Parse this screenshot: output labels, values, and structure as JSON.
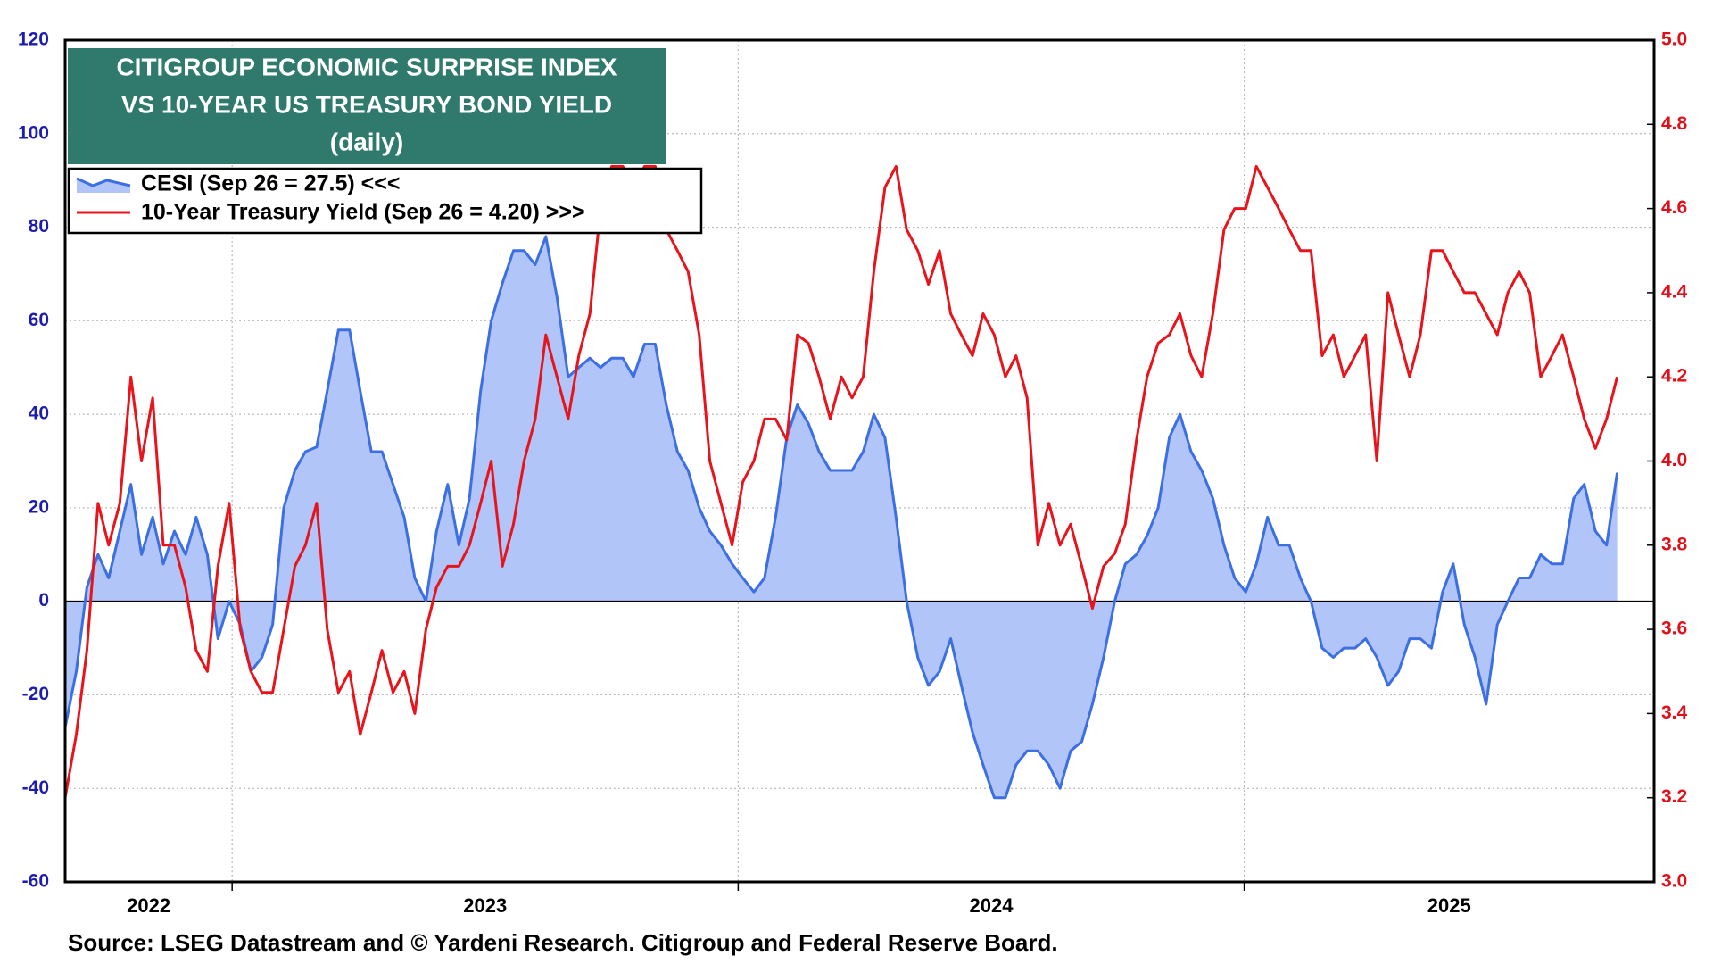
{
  "chart_data": {
    "type": "line",
    "title": [
      "CITIGROUP ECONOMIC SURPRISE INDEX",
      "VS 10-YEAR US TREASURY BOND YIELD"
    ],
    "subtitle": "(daily)",
    "source": "Source: LSEG Datastream and © Yardeni Research. Citigroup and Federal Reserve Board.",
    "x": [
      2022.67,
      2022.692,
      2022.713,
      2022.735,
      2022.756,
      2022.778,
      2022.8,
      2022.821,
      2022.843,
      2022.864,
      2022.886,
      2022.908,
      2022.929,
      2022.951,
      2022.972,
      2022.994,
      2023.016,
      2023.037,
      2023.059,
      2023.08,
      2023.102,
      2023.124,
      2023.145,
      2023.167,
      2023.188,
      2023.21,
      2023.232,
      2023.253,
      2023.275,
      2023.296,
      2023.318,
      2023.34,
      2023.361,
      2023.383,
      2023.404,
      2023.426,
      2023.448,
      2023.469,
      2023.491,
      2023.512,
      2023.534,
      2023.556,
      2023.577,
      2023.599,
      2023.62,
      2023.642,
      2023.664,
      2023.685,
      2023.707,
      2023.728,
      2023.75,
      2023.772,
      2023.793,
      2023.815,
      2023.836,
      2023.858,
      2023.88,
      2023.901,
      2023.923,
      2023.944,
      2023.966,
      2023.988,
      2024.009,
      2024.031,
      2024.052,
      2024.074,
      2024.096,
      2024.117,
      2024.139,
      2024.16,
      2024.182,
      2024.204,
      2024.225,
      2024.247,
      2024.268,
      2024.29,
      2024.312,
      2024.333,
      2024.355,
      2024.376,
      2024.398,
      2024.42,
      2024.441,
      2024.463,
      2024.484,
      2024.506,
      2024.528,
      2024.549,
      2024.571,
      2024.592,
      2024.614,
      2024.636,
      2024.657,
      2024.679,
      2024.7,
      2024.722,
      2024.744,
      2024.765,
      2024.787,
      2024.808,
      2024.83,
      2024.852,
      2024.873,
      2024.895,
      2024.916,
      2024.938,
      2024.96,
      2024.981,
      2025.003,
      2025.024,
      2025.046,
      2025.068,
      2025.089,
      2025.111,
      2025.132,
      2025.154,
      2025.176,
      2025.197,
      2025.219,
      2025.24,
      2025.262,
      2025.284,
      2025.305,
      2025.327,
      2025.348,
      2025.37,
      2025.392,
      2025.413,
      2025.435,
      2025.456,
      2025.478,
      2025.5,
      2025.521,
      2025.543,
      2025.564,
      2025.586,
      2025.608,
      2025.629,
      2025.651,
      2025.672,
      2025.694,
      2025.716,
      2025.737
    ],
    "series": [
      {
        "name": "CESI (Sep 26 = 27.5) <<<",
        "color": "#3c6fe2",
        "fill": "#b2c5f8",
        "axis": "y",
        "values": [
          -27,
          -15,
          3,
          10,
          5,
          15,
          25,
          10,
          18,
          8,
          15,
          10,
          18,
          10,
          -8,
          0,
          -5,
          -15,
          -12,
          -5,
          20,
          28,
          32,
          33,
          45,
          58,
          58,
          45,
          32,
          32,
          25,
          18,
          5,
          0,
          15,
          25,
          12,
          22,
          45,
          60,
          68,
          75,
          75,
          72,
          78,
          65,
          48,
          50,
          52,
          50,
          52,
          52,
          48,
          55,
          55,
          42,
          32,
          28,
          20,
          15,
          12,
          8,
          5,
          2,
          5,
          18,
          35,
          42,
          38,
          32,
          28,
          28,
          28,
          32,
          40,
          35,
          18,
          0,
          -12,
          -18,
          -15,
          -8,
          -18,
          -28,
          -35,
          -42,
          -42,
          -35,
          -32,
          -32,
          -35,
          -40,
          -32,
          -30,
          -22,
          -12,
          0,
          8,
          10,
          14,
          20,
          35,
          40,
          32,
          28,
          22,
          12,
          5,
          2,
          8,
          18,
          12,
          12,
          5,
          0,
          -10,
          -12,
          -10,
          -10,
          -8,
          -12,
          -18,
          -15,
          -8,
          -8,
          -10,
          2,
          8,
          -5,
          -12,
          -22,
          -5,
          0,
          5,
          5,
          10,
          8,
          8,
          22,
          25,
          15,
          12,
          27.5
        ]
      },
      {
        "name": "10-Year Treasury Yield (Sep 26 = 4.20) >>>",
        "color": "#e8141c",
        "axis": "y2",
        "values": [
          3.2,
          3.35,
          3.55,
          3.9,
          3.8,
          3.9,
          4.2,
          4.0,
          4.15,
          3.8,
          3.8,
          3.7,
          3.55,
          3.5,
          3.75,
          3.9,
          3.6,
          3.5,
          3.45,
          3.45,
          3.6,
          3.75,
          3.8,
          3.9,
          3.6,
          3.45,
          3.5,
          3.35,
          3.45,
          3.55,
          3.45,
          3.5,
          3.4,
          3.6,
          3.7,
          3.75,
          3.75,
          3.8,
          3.9,
          4.0,
          3.75,
          3.85,
          4.0,
          4.1,
          4.3,
          4.2,
          4.1,
          4.25,
          4.35,
          4.6,
          4.7,
          4.7,
          4.65,
          4.7,
          4.7,
          4.55,
          4.5,
          4.45,
          4.3,
          4.0,
          3.9,
          3.8,
          3.95,
          4.0,
          4.1,
          4.1,
          4.05,
          4.3,
          4.28,
          4.2,
          4.1,
          4.2,
          4.15,
          4.2,
          4.45,
          4.65,
          4.7,
          4.55,
          4.5,
          4.42,
          4.5,
          4.35,
          4.3,
          4.25,
          4.35,
          4.3,
          4.2,
          4.25,
          4.15,
          3.8,
          3.9,
          3.8,
          3.85,
          3.75,
          3.65,
          3.75,
          3.78,
          3.85,
          4.05,
          4.2,
          4.28,
          4.3,
          4.35,
          4.25,
          4.2,
          4.35,
          4.55,
          4.6,
          4.6,
          4.7,
          4.65,
          4.6,
          4.55,
          4.5,
          4.5,
          4.25,
          4.3,
          4.2,
          4.25,
          4.3,
          4.0,
          4.4,
          4.3,
          4.2,
          4.3,
          4.5,
          4.5,
          4.45,
          4.4,
          4.4,
          4.35,
          4.3,
          4.4,
          4.45,
          4.4,
          4.2,
          4.25,
          4.3,
          4.2,
          4.1,
          4.03,
          4.1,
          4.2
        ]
      }
    ],
    "xlim": [
      2022.67,
      2025.81
    ],
    "xticks": [
      {
        "value": 2022.835,
        "label": "2022"
      },
      {
        "value": 2023.5,
        "label": "2023"
      },
      {
        "value": 2024.5,
        "label": "2024"
      },
      {
        "value": 2025.405,
        "label": "2025"
      }
    ],
    "xgrid": [
      2023,
      2024,
      2025
    ],
    "ylim": [
      -60,
      120
    ],
    "yticks": [
      -60,
      -40,
      -20,
      0,
      20,
      40,
      60,
      80,
      100,
      120
    ],
    "y2lim": [
      3,
      5
    ],
    "y2ticks": [
      {
        "value": 3,
        "label": "3.0"
      },
      3.2,
      3.4,
      3.6,
      3.8,
      {
        "value": 4,
        "label": "4.0"
      },
      4.2,
      4.4,
      4.6,
      4.8,
      {
        "value": 5,
        "label": "5.0"
      }
    ],
    "grid": true,
    "zero_line": true,
    "y_tick_color": "#1c1cb0",
    "y2_tick_color": "#e0101a",
    "title_box_color": "#2f7a6c",
    "legend": "upper left"
  }
}
